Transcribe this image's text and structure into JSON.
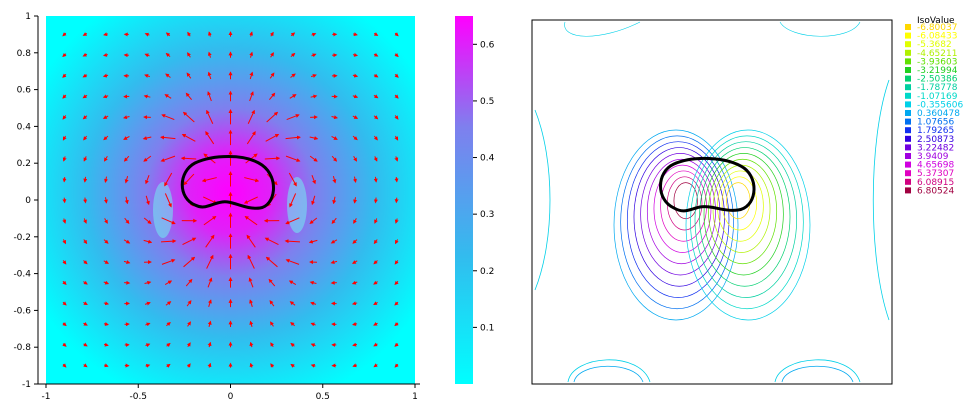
{
  "chart_data": [
    {
      "type": "heatmap",
      "title": "",
      "xlabel": "",
      "ylabel": "",
      "xlim": [
        -1,
        1
      ],
      "ylim": [
        -1,
        1
      ],
      "xticks": [
        "-1",
        "-0.5",
        "0",
        "0.5",
        "1"
      ],
      "yticks": [
        "1",
        "0.8",
        "0.6",
        "0.4",
        "0.2",
        "0",
        "-0.2",
        "-0.4",
        "-0.6",
        "-0.8",
        "-1"
      ],
      "colorbar": {
        "range": [
          0,
          0.65
        ],
        "ticks": [
          "0.6",
          "0.5",
          "0.4",
          "0.3",
          "0.2",
          "0.1"
        ],
        "colors": [
          "#00ffff",
          "#33bbee",
          "#7f7fee",
          "#ff00ff"
        ]
      },
      "overlay": "velocity arrows (red) and closed obstacle curve (black)",
      "arrow_color": "#ff0000",
      "max_value_location": [
        0,
        0.05
      ]
    },
    {
      "type": "contour",
      "legend": {
        "title": "IsoValue",
        "entries": [
          {
            "label": "-6.80037",
            "color": "#ffd800"
          },
          {
            "label": "-6.08433",
            "color": "#ffff00"
          },
          {
            "label": "-5.3682",
            "color": "#e0ff00"
          },
          {
            "label": "-4.65211",
            "color": "#b0f000"
          },
          {
            "label": "-3.93603",
            "color": "#60e000"
          },
          {
            "label": "-3.21994",
            "color": "#20d020"
          },
          {
            "label": "-2.50386",
            "color": "#00d070"
          },
          {
            "label": "-1.78778",
            "color": "#00d0a0"
          },
          {
            "label": "-1.07169",
            "color": "#00d8c8"
          },
          {
            "label": "-0.355606",
            "color": "#00d0e8"
          },
          {
            "label": "0.360478",
            "color": "#00a8f0"
          },
          {
            "label": "1.07656",
            "color": "#0070f0"
          },
          {
            "label": "1.79265",
            "color": "#1030f0"
          },
          {
            "label": "2.50873",
            "color": "#3000e0"
          },
          {
            "label": "3.22482",
            "color": "#7000e0"
          },
          {
            "label": "3.9409",
            "color": "#a000e0"
          },
          {
            "label": "4.65698",
            "color": "#d000e0"
          },
          {
            "label": "5.37307",
            "color": "#e000c0"
          },
          {
            "label": "6.08915",
            "color": "#d00080"
          },
          {
            "label": "6.80524",
            "color": "#a00040"
          }
        ]
      }
    }
  ]
}
